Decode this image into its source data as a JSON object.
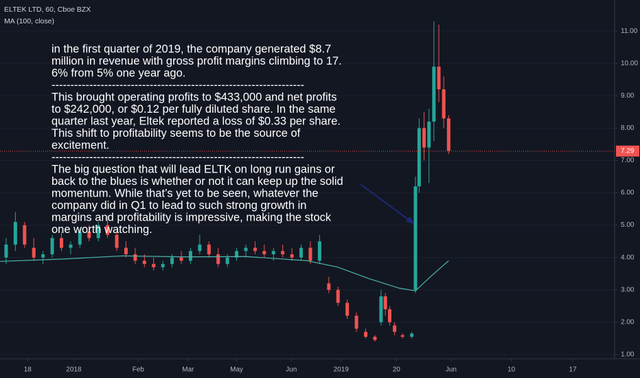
{
  "header": {
    "symbol": "ELTEK LTD, 60, Cboe BZX",
    "indicator": "MA (100, close)"
  },
  "annotation": {
    "lines": [
      "in the first quarter of 2019, the company generated $8.7",
      "million in revenue with gross profit margins climbing to 17.",
      "6% from 5% one year ago.",
      "-------------------------------------------------------------------",
      "This brought operating profits to $433,000 and net profits",
      "to $242,000, or $0.12 per fully diluted share. In the same",
      "quarter last year, Eltek reported a loss of $0.33 per share.",
      "This shift to profitability seems to be the source of",
      "excitement.",
      "-------------------------------------------------------------------",
      "The big question that will lead ELTK on long run gains or",
      "back to the blues is whether or not it can keep up the solid",
      "momentum. While that’s yet to be seen, whatever the",
      "company did in Q1 to lead to such strong growth in",
      "margins and profitability is impressive, making the stock",
      "one worth watching."
    ]
  },
  "chart_data": {
    "type": "candlestick",
    "up_color": "#26a69a",
    "down_color": "#ef5350",
    "xlim": [
      0,
      100
    ],
    "ylim": [
      0.87,
      11.96
    ],
    "xticks": [
      {
        "value": 4.5,
        "label": "18"
      },
      {
        "value": 12,
        "label": "2018"
      },
      {
        "value": 22.5,
        "label": "Feb"
      },
      {
        "value": 30.6,
        "label": "Mar"
      },
      {
        "value": 38.5,
        "label": "May"
      },
      {
        "value": 47.4,
        "label": "Jun"
      },
      {
        "value": 55.5,
        "label": "2019"
      },
      {
        "value": 64.5,
        "label": "20"
      },
      {
        "value": 73.4,
        "label": "Jun"
      },
      {
        "value": 83.2,
        "label": "10"
      },
      {
        "value": 93.2,
        "label": "17"
      }
    ],
    "yticks": [
      {
        "value": 1,
        "label": "1.00"
      },
      {
        "value": 2,
        "label": "2.00"
      },
      {
        "value": 3,
        "label": "3.00"
      },
      {
        "value": 4,
        "label": "4.00"
      },
      {
        "value": 5,
        "label": "5.00"
      },
      {
        "value": 6,
        "label": "6.00"
      },
      {
        "value": 7,
        "label": "7.00"
      },
      {
        "value": 8,
        "label": "8.00"
      },
      {
        "value": 9,
        "label": "9.00"
      },
      {
        "value": 10,
        "label": "10.00"
      },
      {
        "value": 11,
        "label": "11.00"
      }
    ],
    "x": [
      1,
      2.5,
      4,
      5.5,
      7,
      8.5,
      10,
      11.5,
      13,
      14.5,
      16,
      17.5,
      19,
      20.5,
      22,
      23.5,
      25,
      26.5,
      28,
      29.5,
      31,
      32.5,
      34,
      35.5,
      37,
      38.5,
      40,
      41.5,
      43,
      44.5,
      46,
      47.5,
      49,
      50.5,
      52,
      53.5,
      55,
      56.5,
      58,
      59.5,
      61,
      62,
      62.7,
      63.4,
      64.2,
      65.5,
      67,
      67.6,
      68.2,
      69,
      69.8,
      70.6,
      71.4,
      72.2,
      73
    ],
    "open": [
      4.0,
      4.4,
      5.0,
      4.3,
      4.0,
      4.1,
      4.6,
      4.3,
      4.4,
      4.8,
      4.6,
      5.0,
      4.7,
      4.3,
      4.1,
      3.9,
      3.8,
      3.7,
      3.8,
      4.0,
      3.9,
      4.2,
      4.4,
      4.1,
      3.8,
      4.0,
      4.2,
      4.3,
      4.2,
      4.1,
      4.2,
      4.1,
      4.0,
      4.3,
      3.9,
      3.2,
      3.0,
      2.6,
      2.2,
      1.7,
      1.55,
      2.0,
      2.8,
      2.4,
      1.9,
      1.6,
      1.55,
      3.0,
      6.2,
      8.0,
      7.4,
      8.2,
      9.9,
      9.2,
      8.3
    ],
    "high": [
      4.6,
      5.4,
      5.1,
      4.6,
      4.2,
      4.7,
      4.8,
      4.5,
      4.9,
      5.0,
      5.1,
      5.3,
      4.8,
      4.5,
      4.3,
      4.1,
      4.0,
      3.9,
      4.1,
      4.2,
      4.3,
      4.7,
      4.5,
      4.3,
      4.1,
      4.3,
      4.4,
      4.5,
      4.4,
      4.3,
      4.4,
      4.3,
      4.4,
      4.5,
      4.7,
      3.4,
      3.1,
      2.7,
      2.3,
      1.8,
      1.6,
      3.0,
      2.9,
      2.5,
      2.0,
      1.65,
      1.7,
      6.5,
      8.3,
      8.5,
      8.6,
      11.3,
      11.2,
      9.6,
      8.4
    ],
    "low": [
      3.8,
      4.2,
      4.3,
      3.9,
      3.8,
      4.0,
      4.2,
      4.1,
      4.3,
      4.5,
      4.5,
      4.6,
      4.2,
      4.0,
      3.8,
      3.7,
      3.6,
      3.6,
      3.7,
      3.8,
      3.8,
      4.1,
      4.0,
      3.7,
      3.7,
      3.9,
      4.0,
      4.1,
      4.0,
      3.9,
      4.0,
      3.9,
      3.9,
      3.8,
      3.8,
      2.9,
      2.5,
      2.1,
      1.7,
      1.5,
      1.4,
      1.9,
      2.2,
      1.9,
      1.6,
      1.5,
      1.5,
      2.9,
      6.0,
      7.0,
      6.3,
      7.6,
      8.8,
      8.0,
      7.2
    ],
    "close": [
      4.4,
      5.1,
      4.4,
      4.0,
      4.1,
      4.6,
      4.3,
      4.4,
      4.8,
      4.6,
      5.0,
      4.7,
      4.3,
      4.1,
      3.9,
      3.8,
      3.7,
      3.8,
      4.0,
      3.9,
      4.2,
      4.4,
      4.1,
      3.8,
      4.0,
      4.2,
      4.3,
      4.2,
      4.1,
      4.2,
      4.1,
      4.0,
      4.3,
      3.9,
      4.5,
      3.0,
      2.6,
      2.2,
      1.8,
      1.55,
      1.45,
      2.8,
      2.4,
      2.0,
      1.7,
      1.55,
      1.65,
      6.2,
      8.0,
      7.4,
      8.2,
      9.9,
      9.2,
      8.3,
      7.3
    ],
    "ma": {
      "name": "MA (100, close)",
      "color": "#4db6ac",
      "x": [
        0,
        10,
        20,
        30,
        40,
        50,
        55,
        60,
        65,
        67.6,
        70,
        73
      ],
      "values": [
        3.88,
        3.95,
        4.05,
        4.02,
        4.03,
        3.9,
        3.7,
        3.35,
        3.05,
        2.97,
        3.4,
        3.9
      ]
    },
    "last_price": {
      "value": 7.29,
      "label": "7.29"
    }
  }
}
